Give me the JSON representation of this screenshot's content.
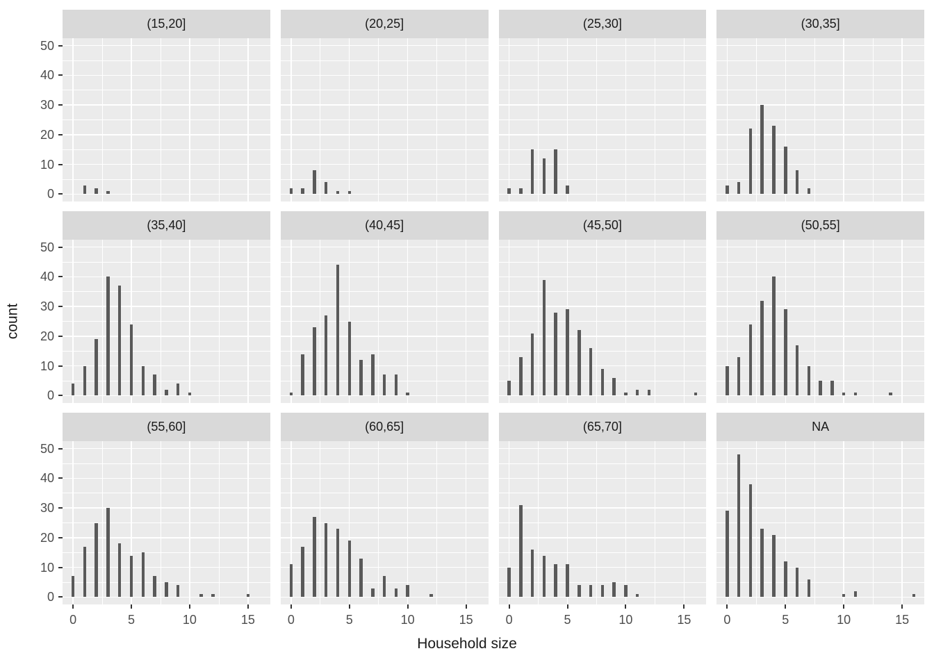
{
  "chart_data": {
    "type": "bar",
    "subtype": "faceted-histogram",
    "title": "",
    "xlabel": "Household size",
    "ylabel": "count",
    "legend": "none",
    "grid": "on",
    "x_ticks": [
      0,
      5,
      10,
      15
    ],
    "y_ticks": [
      0,
      10,
      20,
      30,
      40,
      50
    ],
    "x_minor": [
      2.5,
      7.5,
      12.5
    ],
    "y_minor": [
      5,
      15,
      25,
      35,
      45
    ],
    "xlim": [
      -0.9,
      16.9
    ],
    "ylim": [
      -2.5,
      52.5
    ],
    "facet_rows": 3,
    "facet_cols": 4,
    "facets": [
      {
        "label": "(15,20]",
        "bars": [
          [
            1,
            3
          ],
          [
            2,
            2
          ],
          [
            3,
            1
          ]
        ]
      },
      {
        "label": "(20,25]",
        "bars": [
          [
            0,
            2
          ],
          [
            1,
            2
          ],
          [
            2,
            8
          ],
          [
            3,
            4
          ],
          [
            4,
            1
          ],
          [
            5,
            1
          ]
        ]
      },
      {
        "label": "(25,30]",
        "bars": [
          [
            0,
            2
          ],
          [
            1,
            2
          ],
          [
            2,
            15
          ],
          [
            3,
            12
          ],
          [
            4,
            15
          ],
          [
            5,
            3
          ]
        ]
      },
      {
        "label": "(30,35]",
        "bars": [
          [
            0,
            3
          ],
          [
            1,
            4
          ],
          [
            2,
            22
          ],
          [
            3,
            30
          ],
          [
            4,
            23
          ],
          [
            5,
            16
          ],
          [
            6,
            8
          ],
          [
            7,
            2
          ]
        ]
      },
      {
        "label": "(35,40]",
        "bars": [
          [
            0,
            4
          ],
          [
            1,
            10
          ],
          [
            2,
            19
          ],
          [
            3,
            40
          ],
          [
            4,
            37
          ],
          [
            5,
            24
          ],
          [
            6,
            10
          ],
          [
            7,
            7
          ],
          [
            8,
            2
          ],
          [
            9,
            4
          ],
          [
            10,
            1
          ]
        ]
      },
      {
        "label": "(40,45]",
        "bars": [
          [
            0,
            1
          ],
          [
            1,
            14
          ],
          [
            2,
            23
          ],
          [
            3,
            27
          ],
          [
            4,
            44
          ],
          [
            5,
            25
          ],
          [
            6,
            12
          ],
          [
            7,
            14
          ],
          [
            8,
            7
          ],
          [
            9,
            7
          ],
          [
            10,
            1
          ]
        ]
      },
      {
        "label": "(45,50]",
        "bars": [
          [
            0,
            5
          ],
          [
            1,
            13
          ],
          [
            2,
            21
          ],
          [
            3,
            39
          ],
          [
            4,
            28
          ],
          [
            5,
            29
          ],
          [
            6,
            22
          ],
          [
            7,
            16
          ],
          [
            8,
            9
          ],
          [
            9,
            6
          ],
          [
            10,
            1
          ],
          [
            11,
            2
          ],
          [
            12,
            2
          ],
          [
            16,
            1
          ]
        ]
      },
      {
        "label": "(50,55]",
        "bars": [
          [
            0,
            10
          ],
          [
            1,
            13
          ],
          [
            2,
            24
          ],
          [
            3,
            32
          ],
          [
            4,
            40
          ],
          [
            5,
            29
          ],
          [
            6,
            17
          ],
          [
            7,
            10
          ],
          [
            8,
            5
          ],
          [
            9,
            5
          ],
          [
            10,
            1
          ],
          [
            11,
            1
          ],
          [
            14,
            1
          ]
        ]
      },
      {
        "label": "(55,60]",
        "bars": [
          [
            0,
            7
          ],
          [
            1,
            17
          ],
          [
            2,
            25
          ],
          [
            3,
            30
          ],
          [
            4,
            18
          ],
          [
            5,
            14
          ],
          [
            6,
            15
          ],
          [
            7,
            7
          ],
          [
            8,
            5
          ],
          [
            9,
            4
          ],
          [
            11,
            1
          ],
          [
            12,
            1
          ],
          [
            15,
            1
          ]
        ]
      },
      {
        "label": "(60,65]",
        "bars": [
          [
            0,
            11
          ],
          [
            1,
            17
          ],
          [
            2,
            27
          ],
          [
            3,
            25
          ],
          [
            4,
            23
          ],
          [
            5,
            19
          ],
          [
            6,
            13
          ],
          [
            7,
            3
          ],
          [
            8,
            7
          ],
          [
            9,
            3
          ],
          [
            10,
            4
          ],
          [
            12,
            1
          ]
        ]
      },
      {
        "label": "(65,70]",
        "bars": [
          [
            0,
            10
          ],
          [
            1,
            31
          ],
          [
            2,
            16
          ],
          [
            3,
            14
          ],
          [
            4,
            11
          ],
          [
            5,
            11
          ],
          [
            6,
            4
          ],
          [
            7,
            4
          ],
          [
            8,
            4
          ],
          [
            9,
            5
          ],
          [
            10,
            4
          ],
          [
            11,
            1
          ]
        ]
      },
      {
        "label": "NA",
        "bars": [
          [
            0,
            29
          ],
          [
            1,
            48
          ],
          [
            2,
            38
          ],
          [
            3,
            23
          ],
          [
            4,
            21
          ],
          [
            5,
            12
          ],
          [
            6,
            10
          ],
          [
            7,
            6
          ],
          [
            10,
            1
          ],
          [
            11,
            2
          ],
          [
            16,
            1
          ]
        ]
      }
    ],
    "colors": {
      "bar": "#595959",
      "panel_bg": "#EBEBEB",
      "strip_bg": "#D9D9D9",
      "gridline": "#FFFFFF",
      "tick_label": "#4D4D4D",
      "axis_title": "#1A1A1A",
      "background": "#FFFFFF"
    }
  }
}
